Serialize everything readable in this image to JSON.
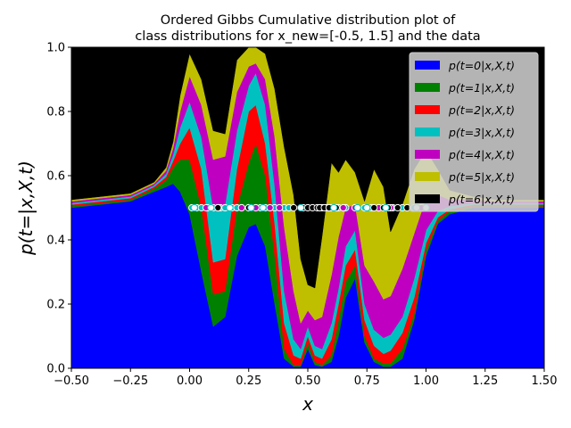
{
  "chart_data": {
    "type": "area",
    "title": [
      "Ordered Gibbs Cumulative distribution plot of",
      "class distributions for x_new=[-0.5, 1.5] and the data"
    ],
    "xlabel": "x",
    "ylabel": "p(t=|x,X,t)",
    "xlim": [
      -0.5,
      1.5
    ],
    "ylim": [
      0,
      1.0
    ],
    "xticks": [
      "−0.50",
      "−0.25",
      "0.00",
      "0.25",
      "0.50",
      "0.75",
      "1.00",
      "1.25",
      "1.50"
    ],
    "yticks": [
      "0.0",
      "0.2",
      "0.4",
      "0.6",
      "0.8",
      "1.0"
    ],
    "grid": false,
    "legend_position": "top-right",
    "x": [
      -0.5,
      -0.25,
      -0.15,
      -0.1,
      -0.07,
      -0.04,
      0.0,
      0.05,
      0.1,
      0.15,
      0.2,
      0.25,
      0.28,
      0.32,
      0.36,
      0.4,
      0.44,
      0.47,
      0.5,
      0.53,
      0.56,
      0.6,
      0.63,
      0.66,
      0.7,
      0.74,
      0.78,
      0.82,
      0.85,
      0.9,
      0.95,
      1.0,
      1.05,
      1.1,
      1.2,
      1.3,
      1.5
    ],
    "series": [
      {
        "name": "p(t=0|x,X,t)",
        "color": "#0000ff",
        "values": [
          0.5,
          0.52,
          0.55,
          0.565,
          0.575,
          0.55,
          0.48,
          0.3,
          0.13,
          0.16,
          0.35,
          0.44,
          0.45,
          0.38,
          0.2,
          0.03,
          0.005,
          0.005,
          0.06,
          0.01,
          0.005,
          0.02,
          0.1,
          0.22,
          0.28,
          0.08,
          0.02,
          0.005,
          0.005,
          0.03,
          0.15,
          0.35,
          0.45,
          0.48,
          0.5,
          0.5,
          0.5
        ]
      },
      {
        "name": "p(t=1|x,X,t)",
        "color": "#008000",
        "values": [
          0.005,
          0.005,
          0.01,
          0.02,
          0.05,
          0.1,
          0.17,
          0.2,
          0.1,
          0.08,
          0.15,
          0.2,
          0.25,
          0.22,
          0.15,
          0.03,
          0.005,
          0.005,
          0.02,
          0.01,
          0.005,
          0.02,
          0.05,
          0.05,
          0.04,
          0.02,
          0.01,
          0.01,
          0.01,
          0.03,
          0.02,
          0.02,
          0.01,
          0.01,
          0.005,
          0.005,
          0.005
        ]
      },
      {
        "name": "p(t=2|x,X,t)",
        "color": "#ff0000",
        "values": [
          0.005,
          0.005,
          0.005,
          0.01,
          0.02,
          0.05,
          0.1,
          0.12,
          0.1,
          0.1,
          0.12,
          0.16,
          0.12,
          0.1,
          0.1,
          0.08,
          0.03,
          0.02,
          0.02,
          0.02,
          0.02,
          0.05,
          0.05,
          0.05,
          0.05,
          0.05,
          0.04,
          0.03,
          0.04,
          0.05,
          0.05,
          0.02,
          0.01,
          0.005,
          0.005,
          0.005,
          0.005
        ]
      },
      {
        "name": "p(t=3|x,X,t)",
        "color": "#00c0c0",
        "values": [
          0.005,
          0.005,
          0.005,
          0.01,
          0.02,
          0.05,
          0.08,
          0.1,
          0.17,
          0.17,
          0.12,
          0.08,
          0.1,
          0.12,
          0.12,
          0.1,
          0.05,
          0.03,
          0.03,
          0.03,
          0.03,
          0.05,
          0.05,
          0.06,
          0.06,
          0.05,
          0.05,
          0.05,
          0.05,
          0.05,
          0.06,
          0.04,
          0.02,
          0.01,
          0.005,
          0.005,
          0.005
        ]
      },
      {
        "name": "p(t=4|x,X,t)",
        "color": "#c000c0",
        "values": [
          0.005,
          0.005,
          0.005,
          0.01,
          0.02,
          0.05,
          0.08,
          0.1,
          0.15,
          0.15,
          0.12,
          0.06,
          0.03,
          0.08,
          0.15,
          0.2,
          0.15,
          0.08,
          0.05,
          0.08,
          0.1,
          0.15,
          0.16,
          0.12,
          0.08,
          0.12,
          0.15,
          0.12,
          0.12,
          0.15,
          0.14,
          0.1,
          0.05,
          0.02,
          0.01,
          0.005,
          0.005
        ]
      },
      {
        "name": "p(t=5|x,X,t)",
        "color": "#bfbf00",
        "values": [
          0.005,
          0.005,
          0.005,
          0.01,
          0.02,
          0.05,
          0.07,
          0.08,
          0.09,
          0.07,
          0.1,
          0.06,
          0.05,
          0.08,
          0.15,
          0.25,
          0.3,
          0.2,
          0.08,
          0.1,
          0.25,
          0.35,
          0.2,
          0.15,
          0.1,
          0.2,
          0.35,
          0.35,
          0.2,
          0.2,
          0.2,
          0.15,
          0.08,
          0.03,
          0.01,
          0.005,
          0.005
        ]
      },
      {
        "name": "p(t=6|x,X,t)",
        "color": "#000000",
        "values": [
          0.48,
          0.46,
          0.42,
          0.375,
          0.295,
          0.15,
          0.02,
          0.1,
          0.26,
          0.27,
          0.04,
          0.0,
          0.0,
          0.02,
          0.13,
          0.31,
          0.465,
          0.665,
          0.74,
          0.75,
          0.595,
          0.36,
          0.39,
          0.35,
          0.39,
          0.48,
          0.38,
          0.435,
          0.575,
          0.49,
          0.38,
          0.32,
          0.38,
          0.44,
          0.465,
          0.48,
          0.48
        ]
      }
    ],
    "points": {
      "y": 0.5,
      "cyan_x": [
        0.01,
        0.03,
        0.05,
        0.08,
        0.1,
        0.13,
        0.15,
        0.18,
        0.2,
        0.22,
        0.3,
        0.32,
        0.36,
        0.4,
        0.42,
        0.6,
        0.63,
        0.66,
        0.7,
        0.74,
        0.77,
        0.8,
        0.86,
        0.9,
        0.95
      ],
      "magenta_x": [
        0.07,
        0.12,
        0.22,
        0.25,
        0.28,
        0.34,
        0.38,
        0.56,
        0.58,
        0.65,
        0.7,
        0.8,
        0.85,
        0.98
      ],
      "black_x": [
        0.12,
        0.25,
        0.44,
        0.48,
        0.5,
        0.52,
        0.54,
        0.55,
        0.57,
        0.59,
        0.62,
        0.78,
        0.82,
        0.84,
        0.88,
        0.92
      ],
      "white_x": [
        0.02,
        0.09,
        0.17,
        0.26,
        0.31,
        0.47,
        0.61,
        0.71,
        0.75,
        0.83,
        0.96,
        1.0
      ]
    }
  }
}
